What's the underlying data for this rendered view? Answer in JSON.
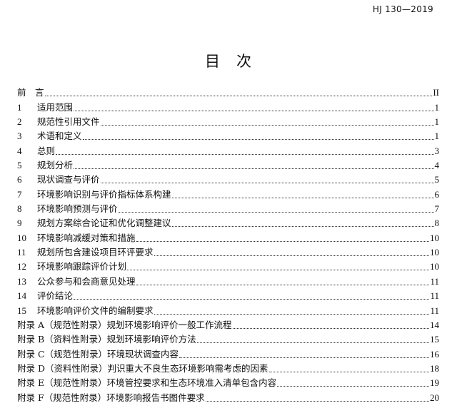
{
  "header": {
    "standard_code": "HJ 130—2019"
  },
  "title": "目　次",
  "toc": [
    {
      "num": "",
      "label": "前　言",
      "page": "II"
    },
    {
      "num": "1",
      "label": "适用范围",
      "page": "1"
    },
    {
      "num": "2",
      "label": "规范性引用文件",
      "page": "1"
    },
    {
      "num": "3",
      "label": "术语和定义",
      "page": "1"
    },
    {
      "num": "4",
      "label": "总则",
      "page": "3"
    },
    {
      "num": "5",
      "label": "规划分析",
      "page": "4"
    },
    {
      "num": "6",
      "label": "现状调查与评价",
      "page": "5"
    },
    {
      "num": "7",
      "label": "环境影响识别与评价指标体系构建",
      "page": "6"
    },
    {
      "num": "8",
      "label": "环境影响预测与评价",
      "page": "7"
    },
    {
      "num": "9",
      "label": "规划方案综合论证和优化调整建议",
      "page": "8"
    },
    {
      "num": "10",
      "label": "环境影响减缓对策和措施",
      "page": "10"
    },
    {
      "num": "11",
      "label": "规划所包含建设项目环评要求",
      "page": "10"
    },
    {
      "num": "12",
      "label": "环境影响跟踪评价计划",
      "page": "10"
    },
    {
      "num": "13",
      "label": "公众参与和会商意见处理",
      "page": "11"
    },
    {
      "num": "14",
      "label": "评价结论",
      "page": "11"
    },
    {
      "num": "15",
      "label": "环境影响评价文件的编制要求",
      "page": "11"
    },
    {
      "num": "",
      "label": "附录 A（规范性附录）规划环境影响评价一般工作流程",
      "page": "14"
    },
    {
      "num": "",
      "label": "附录 B（资料性附录）规划环境影响评价方法",
      "page": "15"
    },
    {
      "num": "",
      "label": "附录 C（规范性附录）环境现状调查内容",
      "page": "16"
    },
    {
      "num": "",
      "label": "附录 D（资料性附录）判识重大不良生态环境影响需考虑的因素",
      "page": "18"
    },
    {
      "num": "",
      "label": "附录 E（规范性附录）环境管控要求和生态环境准入清单包含内容",
      "page": "19"
    },
    {
      "num": "",
      "label": "附录 F（规范性附录）环境影响报告书图件要求",
      "page": "20"
    }
  ]
}
